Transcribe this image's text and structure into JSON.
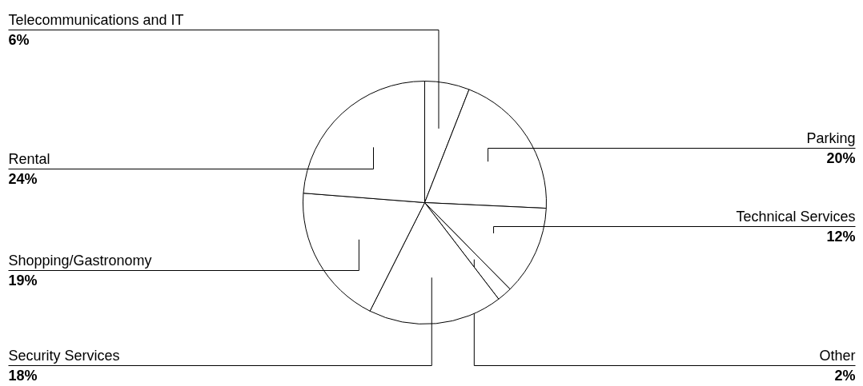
{
  "chart_data": {
    "type": "pie",
    "categories": [
      "Telecommunications and IT",
      "Parking",
      "Technical Services",
      "Other",
      "Security Services",
      "Shopping/Gastronomy",
      "Rental"
    ],
    "values": [
      6,
      20,
      12,
      2,
      18,
      19,
      24
    ],
    "value_labels": [
      "6%",
      "20%",
      "12%",
      "2%",
      "18%",
      "19%",
      "24%"
    ],
    "colors": [
      "#ffffff",
      "#ffffff",
      "#ffffff",
      "#ffffff",
      "#ffffff",
      "#ffffff",
      "#ffffff"
    ]
  }
}
